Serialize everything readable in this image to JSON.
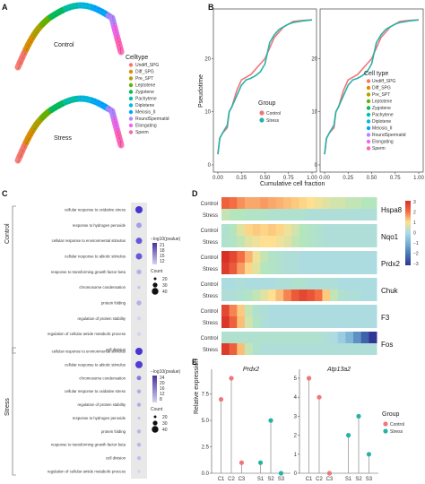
{
  "panels": {
    "A": {
      "label": "A",
      "conditions": [
        "Control",
        "Stress"
      ],
      "legend_title": "Celltype",
      "celltypes": [
        "Undiff_SPG",
        "Diff_SPG",
        "Pre_SPT",
        "Leptotene",
        "Zygotene",
        "Pachytene",
        "Diplotene",
        "Meiosis_II",
        "RoundSpermatid",
        "Elongating",
        "Sperm"
      ],
      "colors": {
        "Undiff_SPG": "#f8766d",
        "Diff_SPG": "#db8e00",
        "Pre_SPT": "#aea200",
        "Leptotene": "#64b200",
        "Zygotene": "#00bd5c",
        "Pachytene": "#00c1a7",
        "Diplotene": "#00bade",
        "Meiosis_II": "#00a6ff",
        "RoundSpermatid": "#b385ff",
        "Elongating": "#ef67eb",
        "Sperm": "#ff63b6"
      }
    },
    "B": {
      "label": "B",
      "legend_title": "Cell type",
      "group_legend_title": "Group",
      "groups": [
        "Control",
        "Stress"
      ],
      "group_colors": {
        "Control": "#f0767a",
        "Stress": "#27b2a8"
      }
    },
    "C": {
      "label": "C",
      "control_label": "Control",
      "stress_label": "Stress",
      "control_terms": [
        "cellular response to oxidative stress",
        "response to hydrogen peroxide",
        "cellular response to environmental stimulus",
        "cellular response to abiotic stimulus",
        "response to transforming growth factor beta",
        "chromosome condensation",
        "protein folding",
        "regulation of protein stability",
        "regulation of cellular amide metabolic process",
        "cell division"
      ],
      "stress_terms": [
        "cellular response to environmental stimulus",
        "cellular response to abiotic stimulus",
        "chromosome condensation",
        "cellular response to oxidative stress",
        "regulation of protein stability",
        "response to hydrogen peroxide",
        "protein folding",
        "response to transforming growth factor beta",
        "cell division",
        "regulation of cellular amide metabolic process"
      ],
      "control_legend": {
        "title": "−log10(pvalue)",
        "ticks": [
          "21",
          "18",
          "15",
          "12"
        ],
        "count_title": "Count",
        "count_ticks": [
          "20",
          "30",
          "40"
        ]
      },
      "stress_legend": {
        "title": "−log10(pvalue)",
        "ticks": [
          "24",
          "20",
          "16",
          "12",
          "8"
        ],
        "count_title": "Count",
        "count_ticks": [
          "20",
          "30",
          "40"
        ]
      }
    },
    "D": {
      "label": "D",
      "genes": [
        "Hspa8",
        "Nqo1",
        "Prdx2",
        "Chuk",
        "F3",
        "Fos"
      ],
      "row_labels": [
        "Control",
        "Stress"
      ],
      "scale_ticks": [
        "3",
        "2",
        "1",
        "0",
        "−1",
        "−2",
        "−3"
      ]
    },
    "E": {
      "label": "E",
      "ylabel": "Relative expression",
      "group_legend_title": "Group",
      "groups": [
        "Control",
        "Stress"
      ]
    }
  },
  "chart_data": [
    {
      "type": "scatter",
      "panel": "A",
      "description_free": true,
      "conditions": [
        "Control",
        "Stress"
      ],
      "categories": [
        "Undiff_SPG",
        "Diff_SPG",
        "Pre_SPT",
        "Leptotene",
        "Zygotene",
        "Pachytene",
        "Diplotene",
        "Meiosis_II",
        "RoundSpermatid",
        "Elongating",
        "Sperm"
      ]
    },
    {
      "type": "line",
      "panel": "B",
      "xlabel": "Cumulative cell fraction",
      "ylabel": "Pseudotime",
      "xlim": [
        0,
        1
      ],
      "ylim": [
        0,
        28
      ],
      "xticks": [
        "0.00",
        "0.25",
        "0.50",
        "0.75",
        "1.00"
      ],
      "yticks": [
        "0",
        "10",
        "20"
      ],
      "series": [
        {
          "name": "Control",
          "x": [
            0,
            0.02,
            0.05,
            0.1,
            0.12,
            0.15,
            0.2,
            0.25,
            0.3,
            0.35,
            0.4,
            0.45,
            0.5,
            0.55,
            0.6,
            0.65,
            0.7,
            0.75,
            0.8,
            0.9,
            1.0
          ],
          "y": [
            2,
            5,
            6,
            7,
            10,
            11,
            14,
            16,
            16.5,
            17,
            18,
            19,
            20,
            22,
            24,
            25,
            26,
            26.5,
            27,
            27.2,
            27.3
          ]
        },
        {
          "name": "Stress",
          "x": [
            0,
            0.02,
            0.05,
            0.1,
            0.12,
            0.15,
            0.2,
            0.25,
            0.3,
            0.35,
            0.4,
            0.45,
            0.5,
            0.55,
            0.6,
            0.65,
            0.7,
            0.75,
            0.8,
            0.9,
            1.0
          ],
          "y": [
            2,
            5,
            6,
            7.5,
            10,
            11,
            13,
            15,
            16,
            16.3,
            16.8,
            17.5,
            19,
            23,
            24.5,
            25.5,
            26,
            26.5,
            26.8,
            27.1,
            27.3
          ]
        }
      ]
    },
    {
      "type": "scatter",
      "panel": "C-control",
      "categories": [
        "cellular response to oxidative stress",
        "response to hydrogen peroxide",
        "cellular response to environmental stimulus",
        "cellular response to abiotic stimulus",
        "response to transforming growth factor beta",
        "chromosome condensation",
        "protein folding",
        "regulation of protein stability",
        "regulation of cellular amide metabolic process",
        "cell division"
      ],
      "count": [
        40,
        32,
        36,
        36,
        30,
        22,
        30,
        26,
        26,
        26
      ],
      "neg_log10_pvalue": [
        21,
        15,
        19,
        19,
        14,
        13,
        14,
        12,
        12,
        12
      ]
    },
    {
      "type": "scatter",
      "panel": "C-stress",
      "categories": [
        "cellular response to environmental stimulus",
        "cellular response to abiotic stimulus",
        "chromosome condensation",
        "cellular response to oxidative stress",
        "regulation of protein stability",
        "response to hydrogen peroxide",
        "protein folding",
        "response to transforming growth factor beta",
        "cell division",
        "regulation of cellular amide metabolic process"
      ],
      "count": [
        40,
        40,
        28,
        26,
        26,
        20,
        26,
        26,
        26,
        22
      ],
      "neg_log10_pvalue": [
        24,
        23,
        17,
        12,
        12,
        10,
        11,
        11,
        10,
        8
      ]
    },
    {
      "type": "heatmap",
      "panel": "D",
      "genes": [
        "Hspa8",
        "Nqo1",
        "Prdx2",
        "Chuk",
        "F3",
        "Fos"
      ],
      "rows": [
        "Control",
        "Stress"
      ],
      "zlim": [
        -3,
        3
      ],
      "profiles": {
        "Hspa8": {
          "Control": [
            2.2,
            2,
            1.7,
            1.5,
            1.5,
            1.6,
            1.5,
            1.4,
            1.3,
            1.2,
            1.1,
            1,
            0.9,
            0.8,
            0.7,
            0.7,
            0.6,
            0.6,
            0.5,
            0.5
          ],
          "Stress": [
            0.6,
            0.5,
            0.5,
            0.4,
            0.4,
            0.4,
            0.3,
            0.3,
            0.3,
            0.3,
            0.3,
            0.2,
            0.2,
            0.2,
            0.2,
            0.2,
            0.2,
            0.2,
            0.2,
            0.2
          ]
        },
        "Nqo1": {
          "Control": [
            0.3,
            0.5,
            0.8,
            1.1,
            1.2,
            1.1,
            1.2,
            1.1,
            0.9,
            0.7,
            0.5,
            0.4,
            0.3,
            0.2,
            0.2,
            0.2,
            0.2,
            0.2,
            0.2,
            0.2
          ],
          "Stress": [
            0.3,
            0.4,
            0.6,
            0.8,
            0.9,
            1,
            1,
            0.9,
            0.8,
            0.6,
            0.5,
            0.4,
            0.3,
            0.2,
            0.2,
            0.2,
            0.2,
            0.2,
            0.2,
            0.2
          ]
        },
        "Prdx2": {
          "Control": [
            3,
            2.6,
            2,
            1.4,
            0.9,
            0.6,
            0.4,
            0.3,
            0.2,
            0.2,
            0.1,
            0.1,
            0.1,
            0.1,
            0.1,
            0.1,
            0.1,
            0.1,
            0.1,
            0.1
          ],
          "Stress": [
            2.8,
            2.3,
            1.6,
            1.1,
            0.8,
            0.5,
            0.4,
            0.3,
            0.2,
            0.2,
            0.1,
            0.1,
            0.1,
            0.1,
            0.1,
            0.1,
            0.1,
            0.1,
            0.1,
            0.1
          ]
        },
        "Chuk": {
          "Control": [
            0.1,
            0.1,
            0.2,
            0.1,
            0.1,
            0.1,
            0.1,
            0.2,
            0.2,
            0.3,
            0.3,
            0.2,
            0.2,
            0.2,
            0.2,
            0.1,
            0.1,
            0.1,
            0.1,
            0.1
          ],
          "Stress": [
            0.2,
            0.2,
            0.3,
            0.4,
            0.6,
            0.8,
            1,
            1.3,
            1.8,
            2.3,
            2.6,
            2.4,
            2,
            1.2,
            0.6,
            0.3,
            0.2,
            0.2,
            0.1,
            0.1
          ]
        },
        "F3": {
          "Control": [
            2.6,
            1.8,
            1.2,
            0.6,
            0.3,
            0.2,
            0.1,
            0.1,
            0.1,
            0.1,
            0.1,
            0.1,
            0.1,
            0.1,
            0.1,
            0.1,
            0.1,
            0.1,
            0.1,
            0.1
          ],
          "Stress": [
            2.9,
            2.2,
            1.3,
            0.7,
            0.4,
            0.2,
            0.1,
            0.1,
            0.1,
            0.1,
            0.1,
            0.1,
            0.1,
            0.1,
            0.1,
            0.1,
            0.1,
            0.1,
            0.1,
            0.1
          ]
        },
        "Fos": {
          "Control": [
            0.3,
            0.3,
            0.3,
            0.3,
            0.3,
            0.3,
            0.3,
            0.3,
            0.3,
            0.3,
            0.3,
            0.3,
            0.3,
            0.2,
            0.1,
            -0.3,
            -0.8,
            -1.5,
            -2.3,
            -3
          ],
          "Stress": [
            2.8,
            2.2,
            1.3,
            0.6,
            0.3,
            0.2,
            0.2,
            0.2,
            0.2,
            0.2,
            0.2,
            0.2,
            0.2,
            0.2,
            0.2,
            0.2,
            0.2,
            0.2,
            0.2,
            0.2
          ]
        }
      }
    },
    {
      "type": "scatter",
      "panel": "E",
      "title": "Prdx2",
      "categories": [
        "C1",
        "C2",
        "C3",
        "S1",
        "S2",
        "S3"
      ],
      "values": [
        7,
        9,
        1,
        1,
        5,
        0
      ],
      "groups": [
        "Control",
        "Control",
        "Control",
        "Stress",
        "Stress",
        "Stress"
      ],
      "ylim": [
        0,
        9
      ],
      "yticks": [
        "0.0",
        "2.5",
        "5.0",
        "7.5"
      ]
    },
    {
      "type": "scatter",
      "panel": "E",
      "title": "Atp13a2",
      "categories": [
        "C1",
        "C2",
        "C3",
        "S1",
        "S2",
        "S3"
      ],
      "values": [
        5,
        4,
        0,
        2,
        3,
        1
      ],
      "groups": [
        "Control",
        "Control",
        "Control",
        "Stress",
        "Stress",
        "Stress"
      ],
      "ylim": [
        0,
        5
      ],
      "yticks": [
        "0",
        "1",
        "2",
        "3",
        "4",
        "5"
      ]
    }
  ]
}
